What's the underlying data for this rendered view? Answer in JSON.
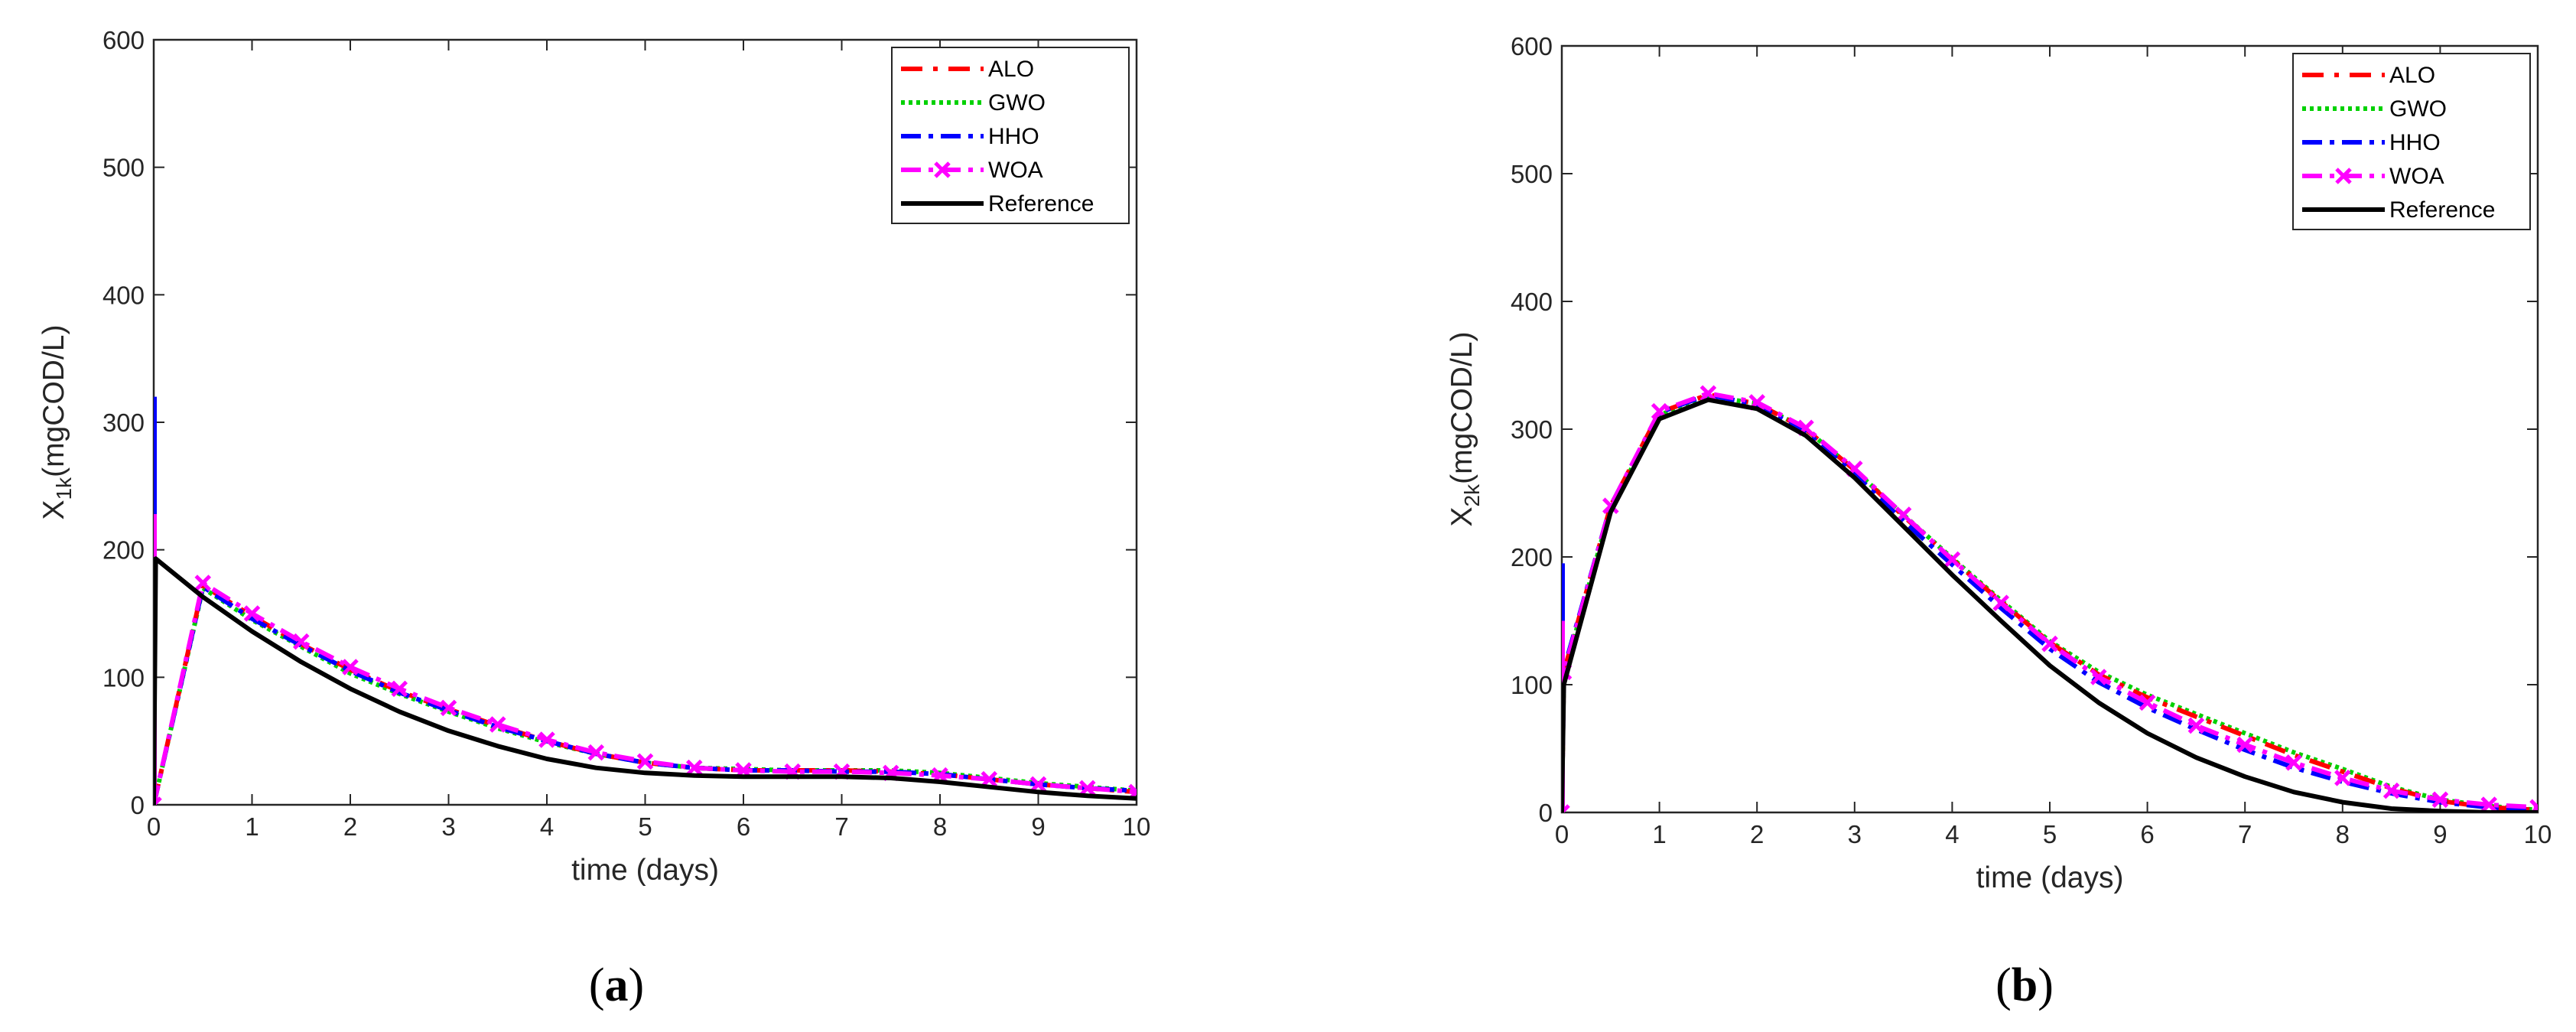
{
  "colors": {
    "ALO": "#ff0000",
    "GWO": "#00d100",
    "HHO": "#0000ff",
    "WOA": "#ff00ff",
    "Reference": "#000000",
    "axis": "#262626"
  },
  "chart_data": [
    {
      "type": "line",
      "panel": "a",
      "caption": {
        "open": "(",
        "letter": "a",
        "close": ")"
      },
      "xlabel": "time (days)",
      "ylabel": {
        "main": "X",
        "sub": "1k",
        "rest": "(mgCOD/L)"
      },
      "xlim": [
        0,
        10
      ],
      "ylim": [
        0,
        600
      ],
      "xticks": [
        "0",
        "1",
        "2",
        "3",
        "4",
        "5",
        "6",
        "7",
        "8",
        "9",
        "10"
      ],
      "yticks": [
        "0",
        "100",
        "200",
        "300",
        "400",
        "500",
        "600"
      ],
      "legend_position": "top-right",
      "spikes": {
        "ALO": 240,
        "GWO": 235,
        "HHO": 320,
        "WOA": 228
      },
      "series": [
        {
          "name": "ALO",
          "x": [
            0,
            0.5,
            1,
            1.5,
            2,
            2.5,
            3,
            3.5,
            4,
            4.5,
            5,
            5.5,
            6,
            6.5,
            7,
            7.5,
            8,
            8.5,
            9,
            9.5,
            10
          ],
          "y": [
            0,
            172,
            148,
            126,
            106,
            89,
            75,
            62,
            50,
            40,
            33,
            29,
            27,
            27,
            27,
            26,
            24,
            20,
            16,
            13,
            10
          ]
        },
        {
          "name": "GWO",
          "x": [
            0,
            0.5,
            1,
            1.5,
            2,
            2.5,
            3,
            3.5,
            4,
            4.5,
            5,
            5.5,
            6,
            6.5,
            7,
            7.5,
            8,
            8.5,
            9,
            9.5,
            10
          ],
          "y": [
            0,
            170,
            145,
            124,
            103,
            87,
            73,
            60,
            49,
            40,
            33,
            29,
            28,
            27,
            27,
            27,
            25,
            21,
            17,
            14,
            11
          ]
        },
        {
          "name": "HHO",
          "x": [
            0,
            0.5,
            1,
            1.5,
            2,
            2.5,
            3,
            3.5,
            4,
            4.5,
            5,
            5.5,
            6,
            6.5,
            7,
            7.5,
            8,
            8.5,
            9,
            9.5,
            10
          ],
          "y": [
            0,
            171,
            146,
            125,
            105,
            88,
            74,
            61,
            50,
            40,
            33,
            29,
            27,
            27,
            26,
            26,
            24,
            20,
            16,
            13,
            11
          ]
        },
        {
          "name": "WOA",
          "x": [
            0,
            0.5,
            1,
            1.5,
            2,
            2.5,
            3,
            3.5,
            4,
            4.5,
            5,
            5.5,
            6,
            6.5,
            7,
            7.5,
            8,
            8.5,
            9,
            9.5,
            10
          ],
          "y": [
            0,
            174,
            150,
            128,
            108,
            91,
            76,
            63,
            51,
            41,
            34,
            29,
            27,
            26,
            26,
            25,
            23,
            20,
            16,
            13,
            10
          ]
        },
        {
          "name": "Reference",
          "x": [
            0,
            0.02,
            0.5,
            1,
            1.5,
            2,
            2.5,
            3,
            3.5,
            4,
            4.5,
            5,
            5.5,
            6,
            6.5,
            7,
            7.5,
            8,
            8.5,
            9,
            9.5,
            10
          ],
          "y": [
            0,
            193,
            163,
            136,
            112,
            91,
            73,
            58,
            46,
            36,
            29,
            25,
            23,
            22,
            22,
            22,
            21,
            18,
            14,
            10,
            7,
            5
          ]
        }
      ]
    },
    {
      "type": "line",
      "panel": "b",
      "caption": {
        "open": "(",
        "letter": "b",
        "close": ")"
      },
      "xlabel": "time (days)",
      "ylabel": {
        "main": "X",
        "sub": "2k",
        "rest": "(mgCOD/L)"
      },
      "xlim": [
        0,
        10
      ],
      "ylim": [
        0,
        600
      ],
      "xticks": [
        "0",
        "1",
        "2",
        "3",
        "4",
        "5",
        "6",
        "7",
        "8",
        "9",
        "10"
      ],
      "yticks": [
        "0",
        "100",
        "200",
        "300",
        "400",
        "500",
        "600"
      ],
      "legend_position": "top-right",
      "spikes": {
        "ALO": 170,
        "GWO": 160,
        "HHO": 195,
        "WOA": 150
      },
      "series": [
        {
          "name": "ALO",
          "x": [
            0,
            0.02,
            0.5,
            1,
            1.5,
            2,
            2.5,
            3,
            3.5,
            4,
            4.5,
            5,
            5.5,
            6,
            6.5,
            7,
            7.5,
            8,
            8.5,
            9,
            9.5,
            10
          ],
          "y": [
            0,
            110,
            240,
            313,
            327,
            320,
            300,
            268,
            232,
            198,
            165,
            133,
            108,
            90,
            75,
            60,
            45,
            32,
            19,
            9,
            4,
            2
          ]
        },
        {
          "name": "GWO",
          "x": [
            0,
            0.02,
            0.5,
            1,
            1.5,
            2,
            2.5,
            3,
            3.5,
            4,
            4.5,
            5,
            5.5,
            6,
            6.5,
            7,
            7.5,
            8,
            8.5,
            9,
            9.5,
            10
          ],
          "y": [
            0,
            108,
            238,
            311,
            326,
            320,
            300,
            268,
            233,
            199,
            166,
            134,
            110,
            92,
            77,
            62,
            47,
            34,
            20,
            10,
            5,
            2
          ]
        },
        {
          "name": "HHO",
          "x": [
            0,
            0.02,
            0.5,
            1,
            1.5,
            2,
            2.5,
            3,
            3.5,
            4,
            4.5,
            5,
            5.5,
            6,
            6.5,
            7,
            7.5,
            8,
            8.5,
            9,
            9.5,
            10
          ],
          "y": [
            0,
            112,
            240,
            313,
            327,
            319,
            298,
            265,
            228,
            194,
            160,
            128,
            102,
            82,
            65,
            49,
            35,
            24,
            15,
            8,
            4,
            2
          ]
        },
        {
          "name": "WOA",
          "x": [
            0,
            0.02,
            0.5,
            1,
            1.5,
            2,
            2.5,
            3,
            3.5,
            4,
            4.5,
            5,
            5.5,
            6,
            6.5,
            7,
            7.5,
            8,
            8.5,
            9,
            9.5,
            10
          ],
          "y": [
            0,
            110,
            240,
            314,
            328,
            321,
            301,
            269,
            233,
            198,
            164,
            132,
            106,
            86,
            68,
            53,
            39,
            27,
            17,
            10,
            6,
            4
          ]
        },
        {
          "name": "Reference",
          "x": [
            0,
            0.02,
            0.5,
            1,
            1.5,
            2,
            2.5,
            3,
            3.5,
            4,
            4.5,
            5,
            5.5,
            6,
            6.5,
            7,
            7.5,
            8,
            8.5,
            9,
            9.5,
            10
          ],
          "y": [
            0,
            100,
            235,
            308,
            323,
            316,
            295,
            262,
            224,
            186,
            150,
            115,
            86,
            62,
            43,
            28,
            16,
            8,
            3,
            1,
            0,
            0
          ]
        }
      ]
    }
  ]
}
